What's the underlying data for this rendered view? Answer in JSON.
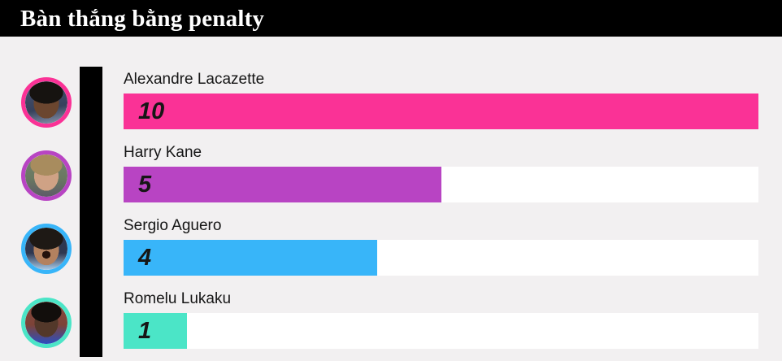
{
  "header": {
    "title": "Bàn thắng bằng penalty"
  },
  "chart_data": {
    "type": "bar",
    "orientation": "horizontal",
    "title": "Bàn thắng bằng penalty",
    "categories": [
      "Alexandre Lacazette",
      "Harry Kane",
      "Sergio Aguero",
      "Romelu Lukaku"
    ],
    "values": [
      10,
      5,
      4,
      1
    ],
    "xlim": [
      0,
      10
    ],
    "grid": false,
    "legend": false,
    "value_labels_inside_bars": true,
    "bar_colors": [
      "#fa3296",
      "#b844c3",
      "#38b5f9",
      "#4be5c7"
    ]
  },
  "rows": [
    {
      "name": "Alexandre Lacazette",
      "value": "10",
      "color": "#fa3296"
    },
    {
      "name": "Harry Kane",
      "value": "5",
      "color": "#b844c3"
    },
    {
      "name": "Sergio Aguero",
      "value": "4",
      "color": "#38b5f9"
    },
    {
      "name": "Romelu Lukaku",
      "value": "1",
      "color": "#4be5c7"
    }
  ],
  "colors": {
    "background": "#f2f0f1",
    "header_bg": "#000000",
    "header_text": "#ffffff",
    "accent_rule": "#000000",
    "bar_track": "#ffffff",
    "name_text": "#151515",
    "value_text": "#161616"
  }
}
